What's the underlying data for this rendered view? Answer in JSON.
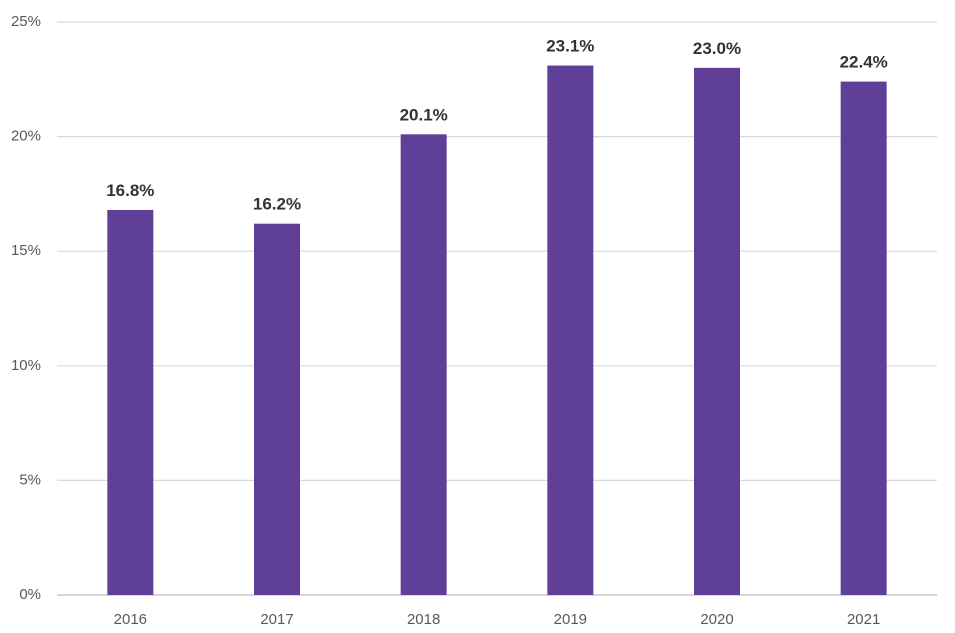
{
  "chart_data": {
    "type": "bar",
    "title": "",
    "xlabel": "",
    "ylabel": "",
    "categories": [
      "2016",
      "2017",
      "2018",
      "2019",
      "2020",
      "2021"
    ],
    "values": [
      16.8,
      16.2,
      20.1,
      23.1,
      23.0,
      22.4
    ],
    "data_labels": [
      "16.8%",
      "16.2%",
      "20.1%",
      "23.1%",
      "23.0%",
      "22.4%"
    ],
    "ylim": [
      0,
      25
    ],
    "y_ticks": [
      0,
      5,
      10,
      15,
      20,
      25
    ],
    "y_tick_labels": [
      "0%",
      "5%",
      "10%",
      "15%",
      "20%",
      "25%"
    ],
    "grid": true,
    "legend": "none",
    "bar_color": "#5f3f97"
  }
}
